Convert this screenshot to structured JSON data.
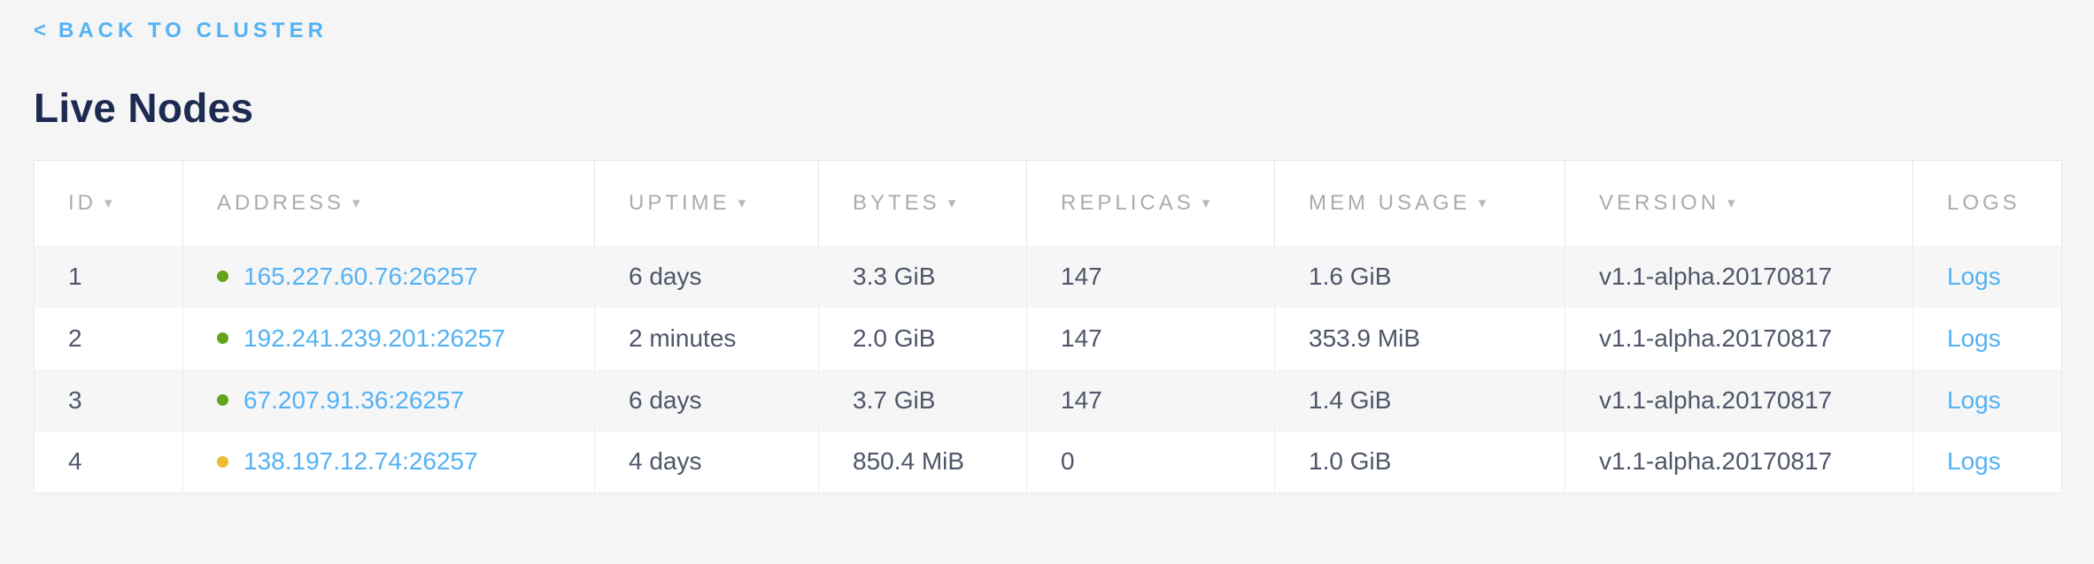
{
  "page": {
    "back_link": {
      "chevron": "<",
      "label": "BACK TO CLUSTER"
    },
    "title": "Live Nodes"
  },
  "table": {
    "sort_arrow": "▾",
    "columns": [
      {
        "key": "id",
        "label": "ID",
        "sortable": true
      },
      {
        "key": "address",
        "label": "ADDRESS",
        "sortable": true
      },
      {
        "key": "uptime",
        "label": "UPTIME",
        "sortable": true
      },
      {
        "key": "bytes",
        "label": "BYTES",
        "sortable": true
      },
      {
        "key": "replicas",
        "label": "REPLICAS",
        "sortable": true
      },
      {
        "key": "mem_usage",
        "label": "MEM USAGE",
        "sortable": true
      },
      {
        "key": "version",
        "label": "VERSION",
        "sortable": true
      },
      {
        "key": "logs",
        "label": "LOGS",
        "sortable": false
      }
    ],
    "rows": [
      {
        "id": "1",
        "status": "live",
        "status_color": "#64a41d",
        "address": "165.227.60.76:26257",
        "uptime": "6 days",
        "bytes": "3.3 GiB",
        "replicas": "147",
        "mem_usage": "1.6 GiB",
        "version": "v1.1-alpha.20170817",
        "logs_label": "Logs"
      },
      {
        "id": "2",
        "status": "live",
        "status_color": "#64a41d",
        "address": "192.241.239.201:26257",
        "uptime": "2 minutes",
        "bytes": "2.0 GiB",
        "replicas": "147",
        "mem_usage": "353.9 MiB",
        "version": "v1.1-alpha.20170817",
        "logs_label": "Logs"
      },
      {
        "id": "3",
        "status": "live",
        "status_color": "#64a41d",
        "address": "67.207.91.36:26257",
        "uptime": "6 days",
        "bytes": "3.7 GiB",
        "replicas": "147",
        "mem_usage": "1.4 GiB",
        "version": "v1.1-alpha.20170817",
        "logs_label": "Logs"
      },
      {
        "id": "4",
        "status": "suspect",
        "status_color": "#ecbc35",
        "address": "138.197.12.74:26257",
        "uptime": "4 days",
        "bytes": "850.4 MiB",
        "replicas": "0",
        "mem_usage": "1.0 GiB",
        "version": "v1.1-alpha.20170817",
        "logs_label": "Logs"
      }
    ]
  },
  "colors": {
    "page_background": "#f5f5f5",
    "link_blue": "#54b2f4",
    "title_navy": "#1d2b50",
    "header_gray": "#a8acb2",
    "cell_text": "#4e5668",
    "live_dot": "#64a41d",
    "suspect_dot": "#ecbc35"
  }
}
